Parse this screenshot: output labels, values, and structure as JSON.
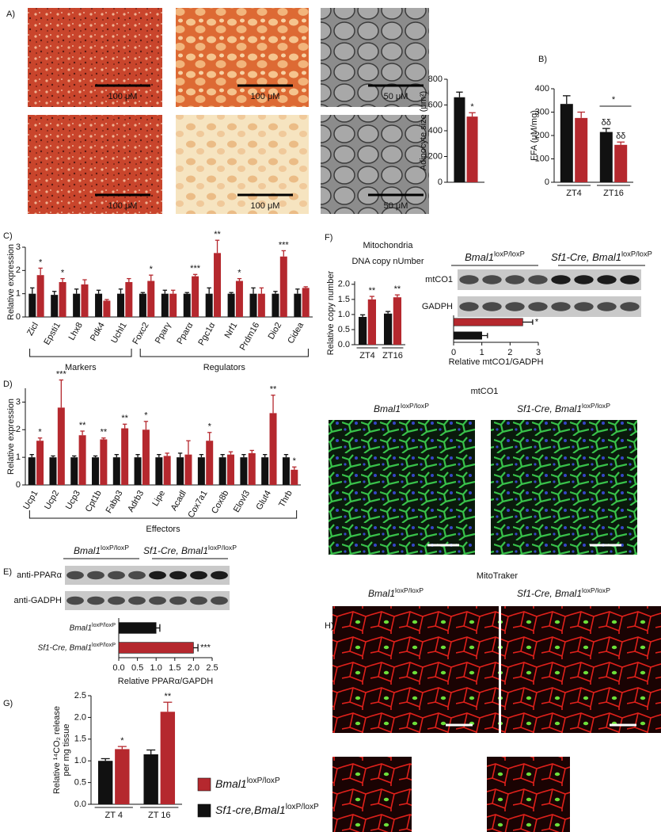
{
  "panels": [
    "A)",
    "B)",
    "C)",
    "D)",
    "E)",
    "F)",
    "G)",
    "H)"
  ],
  "panel_A": {
    "scale_labels": [
      "100 μM",
      "100 μM",
      "50 μM",
      "100 μM",
      "100 μM",
      "50 μM"
    ]
  },
  "panel_E": {
    "groups": [
      [
        "Bmal1",
        "loxP/loxP"
      ],
      [
        "Sf1-Cre, Bmal1",
        "loxP/loxP"
      ]
    ],
    "rows": [
      "anti-PPARα",
      "anti-GADPH"
    ]
  },
  "panel_F": {
    "groups": [
      [
        "Bmal1",
        "loxP/loxP"
      ],
      [
        "Sf1-Cre, Bmal1",
        "loxP/loxP"
      ]
    ],
    "rows": [
      "mtCO1",
      "GADPH"
    ],
    "image_title": "mtCO1",
    "image_groups": [
      [
        "Bmal1",
        "loxP/loxP"
      ],
      [
        "Sf1-Cre, Bmal1",
        "loxP/loxP"
      ]
    ]
  },
  "panel_H": {
    "title": "MitoTraker",
    "groups": [
      [
        "Bmal1",
        "loxP/loxP"
      ],
      [
        "Sf1-Cre, Bmal1",
        "loxP/loxP"
      ]
    ]
  },
  "legend": [
    {
      "label": [
        "Bmal1",
        "loxP/loxP"
      ],
      "color": "#b5282e"
    },
    {
      "label": [
        "Sf1-cre,Bmal1",
        "loxP/loxP"
      ],
      "color": "#111111"
    }
  ],
  "chart_data": [
    {
      "type": "bar",
      "ylabel": "Adipocyte size (μm²)",
      "categories": [
        null
      ],
      "series": [
        {
          "color": "#111111",
          "values": [
            660
          ],
          "errors": [
            40
          ],
          "annotations": [
            null
          ]
        },
        {
          "color": "#b5282e",
          "values": [
            510
          ],
          "errors": [
            30
          ],
          "annotations": [
            "*"
          ]
        }
      ],
      "ylim": [
        0,
        800
      ],
      "yticks": [
        0,
        200,
        400,
        600,
        800
      ]
    },
    {
      "type": "bar",
      "ylabel": "FFA (μM/mg)",
      "categories": [
        "ZT4",
        "ZT16"
      ],
      "series": [
        {
          "color": "#111111",
          "values": [
            335,
            215
          ],
          "errors": [
            35,
            15
          ],
          "annotations": [
            null,
            "δδ"
          ]
        },
        {
          "color": "#b5282e",
          "values": [
            275,
            160
          ],
          "errors": [
            25,
            12
          ],
          "annotations": [
            null,
            "δδ"
          ]
        }
      ],
      "bracket_annotation": "*",
      "ylim": [
        0,
        400
      ],
      "yticks": [
        0,
        100,
        200,
        300,
        400
      ]
    },
    {
      "type": "bar",
      "ylabel": "Relative expression",
      "groups": [
        "Markers",
        "Regulators"
      ],
      "categories": [
        "Zicl",
        "Epsti1",
        "Lhx8",
        "Pdk4",
        "Uchl1",
        "Foxc2",
        "Pparγ",
        "Pparα",
        "Pgc1α",
        "Nrf1",
        "Prdm16",
        "Dio2",
        "Cidea"
      ],
      "series": [
        {
          "color": "#111111",
          "values": [
            1.0,
            0.95,
            1.0,
            1.0,
            1.0,
            1.0,
            1.0,
            1.0,
            1.0,
            1.0,
            1.0,
            1.0,
            1.0
          ],
          "errors": [
            0.25,
            0.15,
            0.2,
            0.15,
            0.2,
            0.05,
            0.15,
            0.05,
            0.25,
            0.05,
            0.25,
            0.1,
            0.2
          ],
          "annotations": [
            null,
            null,
            null,
            null,
            null,
            null,
            null,
            null,
            null,
            null,
            null,
            null,
            null
          ]
        },
        {
          "color": "#b5282e",
          "values": [
            1.8,
            1.5,
            1.4,
            0.7,
            1.5,
            1.55,
            1.0,
            1.75,
            2.75,
            1.55,
            1.0,
            2.6,
            1.25
          ],
          "errors": [
            0.3,
            0.15,
            0.2,
            0.05,
            0.15,
            0.25,
            0.15,
            0.08,
            0.55,
            0.1,
            0.25,
            0.25,
            0.05
          ],
          "annotations": [
            "*",
            "*",
            null,
            null,
            null,
            "*",
            null,
            "***",
            "**",
            "*",
            null,
            "***",
            null
          ]
        }
      ],
      "ylim": [
        0,
        3
      ],
      "yticks": [
        0,
        1,
        2,
        3
      ]
    },
    {
      "type": "bar",
      "ylabel": "Relative expression",
      "groups": [
        "Effectors"
      ],
      "categories": [
        "Ucp1",
        "Ucp2",
        "Ucp3",
        "Cpt1b",
        "Fabp3",
        "Adrb3",
        "Lipe",
        "Acadl",
        "Cox7a1",
        "Cox8b",
        "Elovl3",
        "Glut4",
        "Thrb"
      ],
      "series": [
        {
          "color": "#111111",
          "values": [
            1.0,
            1.0,
            1.0,
            1.0,
            1.0,
            1.0,
            1.0,
            1.0,
            1.0,
            1.0,
            1.0,
            1.0,
            1.0
          ],
          "errors": [
            0.1,
            0.05,
            0.05,
            0.05,
            0.1,
            0.1,
            0.1,
            0.15,
            0.1,
            0.1,
            0.1,
            0.1,
            0.1
          ],
          "annotations": [
            null,
            null,
            null,
            null,
            null,
            null,
            null,
            null,
            null,
            null,
            null,
            null,
            null
          ]
        },
        {
          "color": "#b5282e",
          "values": [
            1.6,
            2.8,
            1.8,
            1.65,
            2.05,
            2.0,
            1.05,
            1.1,
            1.6,
            1.1,
            1.15,
            2.6,
            0.55
          ],
          "errors": [
            0.1,
            1.0,
            0.15,
            0.05,
            0.15,
            0.3,
            0.1,
            0.5,
            0.3,
            0.1,
            0.1,
            0.65,
            0.1
          ],
          "annotations": [
            "*",
            "***",
            "**",
            "**",
            "**",
            "*",
            null,
            null,
            "*",
            null,
            null,
            "**",
            "*"
          ]
        }
      ],
      "ylim": [
        0,
        3.5
      ],
      "yticks": [
        0,
        1,
        2,
        3
      ]
    },
    {
      "type": "barh",
      "xlabel": "Relative PPARα/GAPDH",
      "categories": [
        [
          "Bmal1",
          "loxP/loxP"
        ],
        [
          "Sf1-Cre, Bmal1",
          "loxP/loxP"
        ]
      ],
      "values": [
        1.0,
        2.0
      ],
      "errors": [
        0.1,
        0.12
      ],
      "colors": [
        "#111111",
        "#b5282e"
      ],
      "annotations": [
        null,
        "***"
      ],
      "xlim": [
        0,
        2.5
      ],
      "xticks": [
        {
          "value": 0,
          "label": "0.0"
        },
        {
          "value": 0.5,
          "label": "0.5"
        },
        {
          "value": 1,
          "label": "1.0"
        },
        {
          "value": 1.5,
          "label": "1.5"
        },
        {
          "value": 2,
          "label": "2.0"
        },
        {
          "value": 2.5,
          "label": "2.5"
        }
      ]
    },
    {
      "type": "bar",
      "title": [
        "Mitochondria",
        "DNA copy nUmber"
      ],
      "ylabel": "Relative copy number",
      "categories": [
        "ZT4",
        "ZT16"
      ],
      "series": [
        {
          "color": "#111111",
          "values": [
            0.92,
            1.03
          ],
          "errors": [
            0.07,
            0.07
          ],
          "annotations": [
            null,
            null
          ]
        },
        {
          "color": "#b5282e",
          "values": [
            1.5,
            1.57
          ],
          "errors": [
            0.1,
            0.08
          ],
          "annotations": [
            "**",
            "**"
          ]
        }
      ],
      "ylim": [
        0,
        2.1
      ],
      "yticks": [
        {
          "value": 0,
          "label": "0.0"
        },
        {
          "value": 0.5,
          "label": "0.5"
        },
        {
          "value": 1,
          "label": "1.0"
        },
        {
          "value": 1.5,
          "label": "1.5"
        },
        {
          "value": 2,
          "label": "2.0"
        }
      ]
    },
    {
      "type": "barh",
      "xlabel": "Relative mtCO1/GADPH",
      "categories": [
        null,
        null
      ],
      "values": [
        2.45,
        1.0
      ],
      "errors": [
        0.35,
        0.2
      ],
      "colors": [
        "#b5282e",
        "#111111"
      ],
      "annotations": [
        "*",
        null
      ],
      "xlim": [
        0,
        3
      ],
      "xticks": [
        0,
        1,
        2,
        3
      ]
    },
    {
      "type": "bar",
      "ylabel": [
        "Relative ¹⁴CO₂ release",
        "per mg tissue"
      ],
      "categories": [
        "ZT 4",
        "ZT 16"
      ],
      "series": [
        {
          "color": "#111111",
          "values": [
            1.0,
            1.15
          ],
          "errors": [
            0.05,
            0.1
          ],
          "annotations": [
            null,
            null
          ]
        },
        {
          "color": "#b5282e",
          "values": [
            1.27,
            2.13
          ],
          "errors": [
            0.06,
            0.22
          ],
          "annotations": [
            "*",
            "**"
          ]
        }
      ],
      "ylim": [
        0,
        2.5
      ],
      "yticks": [
        {
          "value": 0,
          "label": "0.0"
        },
        {
          "value": 0.5,
          "label": "0.5"
        },
        {
          "value": 1,
          "label": "1.0"
        },
        {
          "value": 1.5,
          "label": "1.5"
        },
        {
          "value": 2,
          "label": "2.0"
        },
        {
          "value": 2.5,
          "label": "2.5"
        }
      ]
    }
  ]
}
